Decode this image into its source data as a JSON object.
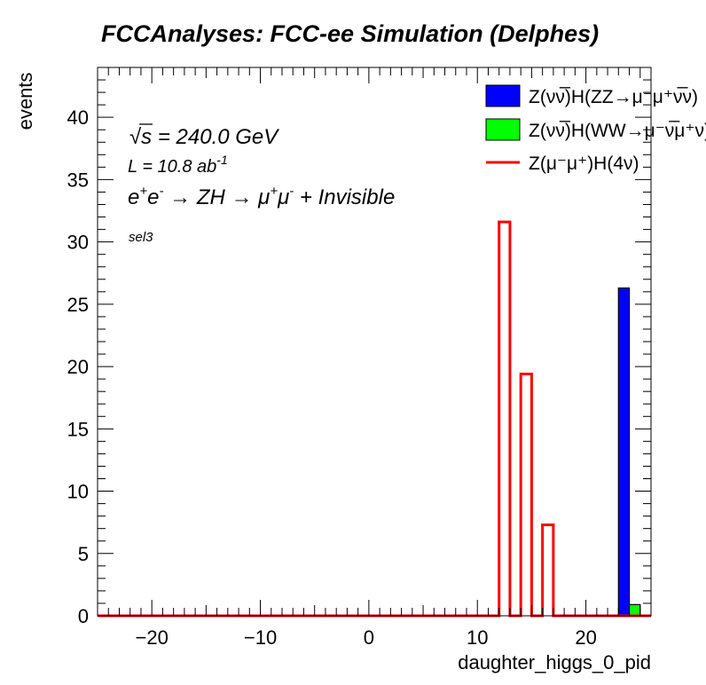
{
  "chart_data": {
    "type": "bar",
    "title": "FCCAnalyses: FCC-ee Simulation (Delphes)",
    "xlabel": "daughter_higgs_0_pid",
    "ylabel": "events",
    "xlim": [
      -25,
      26
    ],
    "ylim": [
      0,
      44
    ],
    "x_ticks": [
      -20,
      -10,
      0,
      10,
      20
    ],
    "y_ticks": [
      0,
      5,
      10,
      15,
      20,
      25,
      30,
      35,
      40
    ],
    "x_tick_labels": [
      "−20",
      "−10",
      "0",
      "10",
      "20"
    ],
    "y_tick_labels": [
      "0",
      "5",
      "10",
      "15",
      "20",
      "25",
      "30",
      "35",
      "40"
    ],
    "bin_width": 1,
    "grid": false,
    "legend_position": "top-right",
    "annotations": {
      "sqrt_symbol": "√",
      "sqrt_var": "s",
      "energy": " = 240.0 GeV",
      "lumi_main": "L = 10.8 ab",
      "lumi_exp": "-1",
      "process": {
        "e1": "e",
        "e1_sup": "+",
        "e2": "e",
        "e2_sup": "-",
        "arrow1": " → ZH ",
        "arrow2": "→ ",
        "mu1": "μ",
        "mu1_sup": "+",
        "mu2": "μ",
        "mu2_sup": "-",
        "rest": " + Invisible"
      },
      "selection": "sel3"
    },
    "series": [
      {
        "name": "Z(νν̅)H(ZZ→μ⁻μ⁺ν̅ν)",
        "style": "filled",
        "color": "#0000ff",
        "stacked": true,
        "bins": [
          {
            "low": 23,
            "value": 26.3
          }
        ]
      },
      {
        "name": "Z(νν̅)H(WW→μ⁻ν̅μ⁺ν)",
        "style": "filled",
        "color": "#00ff00",
        "stacked": true,
        "bins": [
          {
            "low": 24,
            "value": 0.9
          }
        ]
      },
      {
        "name": "Z(μ⁻μ⁺)H(4ν)",
        "style": "line",
        "color": "#ff0000",
        "stacked": false,
        "bins": [
          {
            "low": 12,
            "value": 31.6
          },
          {
            "low": 14,
            "value": 19.4
          },
          {
            "low": 16,
            "value": 7.3
          }
        ]
      }
    ]
  }
}
